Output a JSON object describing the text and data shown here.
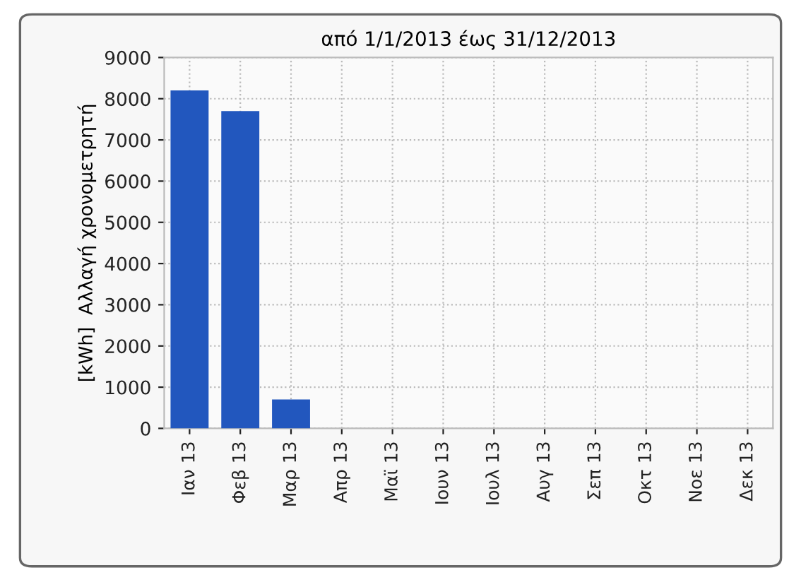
{
  "chart_data": {
    "type": "bar",
    "title": "από 1/1/2013 έως 31/12/2013",
    "ylabel": "[kWh]  Αλλαγή χρονομετρητή",
    "categories": [
      "Ιαν 13",
      "Φεβ 13",
      "Μαρ 13",
      "Απρ 13",
      "Μαϊ 13",
      "Ιουν 13",
      "Ιουλ 13",
      "Αυγ 13",
      "Σεπ 13",
      "Οκτ 13",
      "Νοε 13",
      "Δεκ 13"
    ],
    "values": [
      8200,
      7700,
      700,
      0,
      0,
      0,
      0,
      0,
      0,
      0,
      0,
      0
    ],
    "color": "#2257be",
    "ylim": [
      0,
      9000
    ],
    "yticks": [
      0,
      1000,
      2000,
      3000,
      4000,
      5000,
      6000,
      7000,
      8000,
      9000
    ],
    "grid": true
  }
}
